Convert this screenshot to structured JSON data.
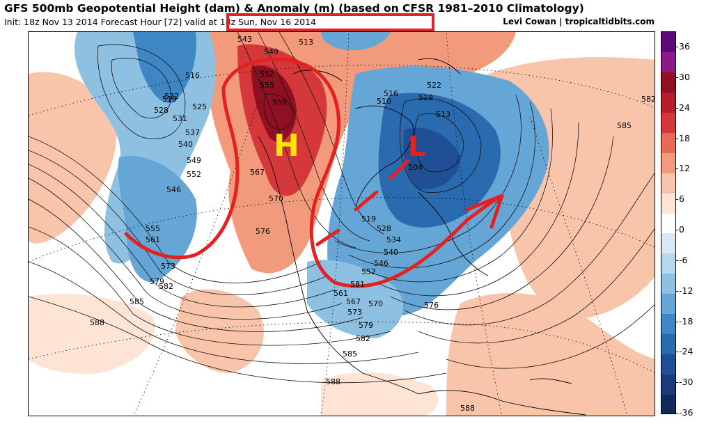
{
  "header": {
    "title": "GFS 500mb Geopotential Height (dam) & Anomaly (m) (based on CFSR 1981–2010 Climatology)",
    "init_prefix": "Init: 18z Nov 13 2014 Forecast Hour",
    "forecast_hour": "[72]",
    "valid_text": "valid at 18z Sun, Nov 16 2014",
    "credit": "Levi Cowan | tropicaltidbits.com"
  },
  "annotations": {
    "high_label": "H",
    "low_label": "L",
    "highlight_color": "#e52020",
    "letter_color": "#ffe600"
  },
  "contour_labels": [
    "543",
    "549",
    "513",
    "552",
    "555",
    "558",
    "516",
    "519",
    "522",
    "528",
    "525",
    "531",
    "537",
    "540",
    "549",
    "552",
    "567",
    "570",
    "546",
    "555",
    "561",
    "573",
    "579",
    "582",
    "576",
    "510",
    "516",
    "522",
    "519",
    "513",
    "582",
    "585",
    "504",
    "519",
    "528",
    "534",
    "540",
    "546",
    "552",
    "561",
    "567",
    "570",
    "573",
    "576",
    "581",
    "585",
    "588",
    "579",
    "582",
    "585",
    "588",
    "588"
  ],
  "colorbar": {
    "labels": [
      "36",
      "30",
      "24",
      "18",
      "12",
      "6",
      "0",
      "-6",
      "-12",
      "-18",
      "-24",
      "-30",
      "-36"
    ],
    "colors": [
      "#5c0a7a",
      "#8c1a86",
      "#8f1020",
      "#b51d2a",
      "#d4383a",
      "#e86a54",
      "#f29a7c",
      "#f8c4aa",
      "#fde4d4",
      "#ffffff",
      "#d8e9f4",
      "#b6d7ec",
      "#8ec0e2",
      "#66a6d6",
      "#3f87c4",
      "#2a6aae",
      "#1f4f94",
      "#183c7a",
      "#112a5e"
    ]
  }
}
